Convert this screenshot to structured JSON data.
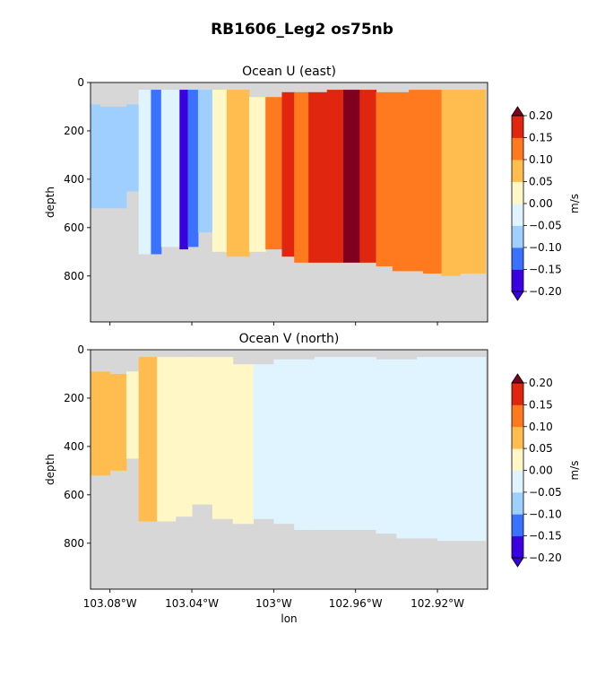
{
  "figure": {
    "suptitle": "RB1606_Leg2 os75nb"
  },
  "colors": {
    "background_mask": "#d7d7d7",
    "levels": [
      "#3a00e0",
      "#3a72ff",
      "#9fcfff",
      "#e0f4ff",
      "#fff7c6",
      "#ffbd4f",
      "#ff7a1f",
      "#e0260e",
      "#800020"
    ],
    "under": "#3a00e0",
    "over": "#800020"
  },
  "chart_data": [
    {
      "type": "heatmap",
      "title": "Ocean U (east)",
      "xlabel": "",
      "ylabel": "depth",
      "x_ticks": [
        "103.08°W",
        "103.04°W",
        "103°W",
        "102.96°W",
        "102.92°W"
      ],
      "x_tick_values": [
        -103.08,
        -103.04,
        -103.0,
        -102.96,
        -102.92
      ],
      "y_ticks": [
        "0",
        "200",
        "400",
        "600",
        "800"
      ],
      "y_tick_values": [
        0,
        200,
        400,
        600,
        800
      ],
      "xlim": [
        -103.0895,
        -102.8955
      ],
      "ylim": [
        990,
        0
      ],
      "show_x_tick_labels": false,
      "colorbar": {
        "label": "m/s",
        "levels": [
          -0.2,
          -0.15,
          -0.1,
          -0.05,
          0.0,
          0.05,
          0.1,
          0.15,
          0.2
        ],
        "tick_labels": [
          "−0.20",
          "−0.15",
          "−0.10",
          "−0.05",
          "0.00",
          "0.05",
          "0.10",
          "0.15",
          "0.20"
        ],
        "extend": "both"
      },
      "top_depth": 30,
      "segments": [
        {
          "x0": -103.0895,
          "x1": -103.085,
          "bottom": 520,
          "top": 90,
          "value": -0.07
        },
        {
          "x0": -103.085,
          "x1": -103.072,
          "bottom": 520,
          "top": 100,
          "value": -0.08
        },
        {
          "x0": -103.072,
          "x1": -103.066,
          "bottom": 450,
          "top": 90,
          "value": -0.06
        },
        {
          "x0": -103.066,
          "x1": -103.06,
          "bottom": 710,
          "top": 30,
          "value": -0.04
        },
        {
          "x0": -103.06,
          "x1": -103.055,
          "bottom": 710,
          "top": 30,
          "value": -0.12
        },
        {
          "x0": -103.055,
          "x1": -103.046,
          "bottom": 680,
          "top": 30,
          "value": -0.03
        },
        {
          "x0": -103.046,
          "x1": -103.042,
          "bottom": 690,
          "top": 30,
          "value": -0.18
        },
        {
          "x0": -103.042,
          "x1": -103.037,
          "bottom": 680,
          "top": 30,
          "value": -0.13
        },
        {
          "x0": -103.037,
          "x1": -103.03,
          "bottom": 620,
          "top": 30,
          "value": -0.07
        },
        {
          "x0": -103.03,
          "x1": -103.023,
          "bottom": 700,
          "top": 30,
          "value": 0.03
        },
        {
          "x0": -103.023,
          "x1": -103.012,
          "bottom": 720,
          "top": 30,
          "value": 0.08
        },
        {
          "x0": -103.012,
          "x1": -103.004,
          "bottom": 700,
          "top": 60,
          "value": 0.04
        },
        {
          "x0": -103.004,
          "x1": -102.996,
          "bottom": 690,
          "top": 60,
          "value": 0.12
        },
        {
          "x0": -102.996,
          "x1": -102.99,
          "bottom": 720,
          "top": 40,
          "value": 0.17
        },
        {
          "x0": -102.99,
          "x1": -102.983,
          "bottom": 745,
          "top": 40,
          "value": 0.13
        },
        {
          "x0": -102.983,
          "x1": -102.974,
          "bottom": 745,
          "top": 40,
          "value": 0.18
        },
        {
          "x0": -102.974,
          "x1": -102.966,
          "bottom": 745,
          "top": 30,
          "value": 0.16
        },
        {
          "x0": -102.966,
          "x1": -102.958,
          "bottom": 745,
          "top": 30,
          "value": 0.22
        },
        {
          "x0": -102.958,
          "x1": -102.95,
          "bottom": 745,
          "top": 30,
          "value": 0.17
        },
        {
          "x0": -102.95,
          "x1": -102.942,
          "bottom": 760,
          "top": 40,
          "value": 0.1
        },
        {
          "x0": -102.942,
          "x1": -102.934,
          "bottom": 780,
          "top": 40,
          "value": 0.12
        },
        {
          "x0": -102.934,
          "x1": -102.927,
          "bottom": 780,
          "top": 30,
          "value": 0.14
        },
        {
          "x0": -102.927,
          "x1": -102.918,
          "bottom": 790,
          "top": 30,
          "value": 0.11
        },
        {
          "x0": -102.918,
          "x1": -102.909,
          "bottom": 800,
          "top": 30,
          "value": 0.09
        },
        {
          "x0": -102.909,
          "x1": -102.8965,
          "bottom": 790,
          "top": 30,
          "value": 0.08
        }
      ]
    },
    {
      "type": "heatmap",
      "title": "Ocean V (north)",
      "xlabel": "lon",
      "ylabel": "depth",
      "x_ticks": [
        "103.08°W",
        "103.04°W",
        "103°W",
        "102.96°W",
        "102.92°W"
      ],
      "x_tick_values": [
        -103.08,
        -103.04,
        -103.0,
        -102.96,
        -102.92
      ],
      "y_ticks": [
        "0",
        "200",
        "400",
        "600",
        "800"
      ],
      "y_tick_values": [
        0,
        200,
        400,
        600,
        800
      ],
      "xlim": [
        -103.0895,
        -102.8955
      ],
      "ylim": [
        990,
        0
      ],
      "show_x_tick_labels": true,
      "colorbar": {
        "label": "m/s",
        "levels": [
          -0.2,
          -0.15,
          -0.1,
          -0.05,
          0.0,
          0.05,
          0.1,
          0.15,
          0.2
        ],
        "tick_labels": [
          "−0.20",
          "−0.15",
          "−0.10",
          "−0.05",
          "0.00",
          "0.05",
          "0.10",
          "0.15",
          "0.20"
        ],
        "extend": "both"
      },
      "top_depth": 30,
      "segments": [
        {
          "x0": -103.0895,
          "x1": -103.08,
          "bottom": 520,
          "top": 90,
          "value": 0.07
        },
        {
          "x0": -103.08,
          "x1": -103.072,
          "bottom": 500,
          "top": 100,
          "value": 0.06
        },
        {
          "x0": -103.072,
          "x1": -103.066,
          "bottom": 450,
          "top": 90,
          "value": 0.02
        },
        {
          "x0": -103.066,
          "x1": -103.057,
          "bottom": 710,
          "top": 30,
          "value": 0.06
        },
        {
          "x0": -103.057,
          "x1": -103.048,
          "bottom": 710,
          "top": 30,
          "value": 0.03
        },
        {
          "x0": -103.048,
          "x1": -103.04,
          "bottom": 690,
          "top": 30,
          "value": 0.02
        },
        {
          "x0": -103.04,
          "x1": -103.03,
          "bottom": 640,
          "top": 30,
          "value": 0.03
        },
        {
          "x0": -103.03,
          "x1": -103.02,
          "bottom": 700,
          "top": 30,
          "value": 0.02
        },
        {
          "x0": -103.02,
          "x1": -103.01,
          "bottom": 720,
          "top": 60,
          "value": 0.01
        },
        {
          "x0": -103.01,
          "x1": -103.0,
          "bottom": 700,
          "top": 60,
          "value": -0.02
        },
        {
          "x0": -103.0,
          "x1": -102.99,
          "bottom": 720,
          "top": 40,
          "value": -0.03
        },
        {
          "x0": -102.99,
          "x1": -102.98,
          "bottom": 745,
          "top": 40,
          "value": -0.02
        },
        {
          "x0": -102.98,
          "x1": -102.97,
          "bottom": 745,
          "top": 30,
          "value": -0.03
        },
        {
          "x0": -102.97,
          "x1": -102.96,
          "bottom": 745,
          "top": 30,
          "value": -0.04
        },
        {
          "x0": -102.96,
          "x1": -102.95,
          "bottom": 745,
          "top": 30,
          "value": -0.02
        },
        {
          "x0": -102.95,
          "x1": -102.94,
          "bottom": 760,
          "top": 40,
          "value": -0.03
        },
        {
          "x0": -102.94,
          "x1": -102.93,
          "bottom": 780,
          "top": 40,
          "value": -0.02
        },
        {
          "x0": -102.93,
          "x1": -102.92,
          "bottom": 780,
          "top": 30,
          "value": -0.04
        },
        {
          "x0": -102.92,
          "x1": -102.91,
          "bottom": 790,
          "top": 30,
          "value": -0.03
        },
        {
          "x0": -102.91,
          "x1": -102.8965,
          "bottom": 790,
          "top": 30,
          "value": -0.04
        }
      ]
    }
  ]
}
